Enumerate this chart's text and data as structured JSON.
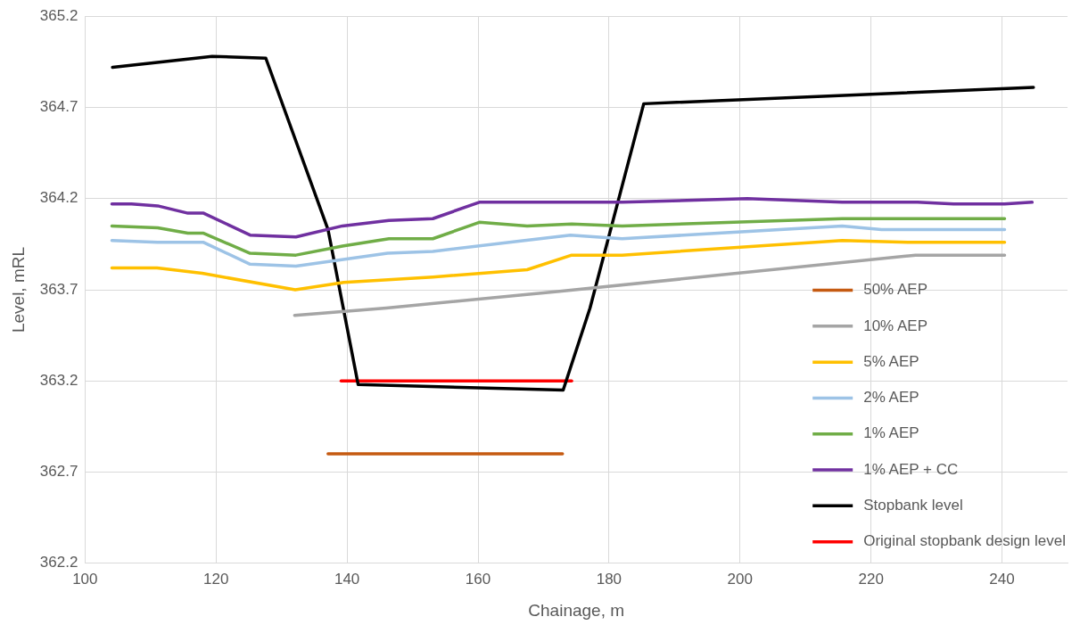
{
  "chart_data": {
    "type": "line",
    "xlabel": "Chainage, m",
    "ylabel": "Level, mRL",
    "xlim": [
      100,
      250
    ],
    "xticks": [
      100,
      120,
      140,
      160,
      180,
      200,
      220,
      240
    ],
    "ylim": [
      362.2,
      365.2
    ],
    "yticks": [
      362.2,
      362.7,
      363.2,
      363.7,
      364.2,
      364.7,
      365.2
    ],
    "grid": true,
    "legend": "bottom right",
    "marker": "none",
    "line_style": "solid",
    "series": [
      {
        "name": "50% AEP",
        "color": "#c55a11",
        "x": [
          137.1,
          172.9
        ],
        "values": [
          362.8,
          362.8
        ]
      },
      {
        "name": "10% AEP",
        "color": "#a5a5a5",
        "x": [
          132,
          146,
          172.1,
          226.8,
          240.4
        ],
        "values": [
          363.56,
          363.6,
          363.69,
          363.89,
          363.89
        ]
      },
      {
        "name": "5% AEP",
        "color": "#ffc000",
        "x": [
          104.1,
          111,
          117.9,
          132.1,
          139.5,
          153.1,
          167.5,
          174.3,
          182,
          215.6,
          225.9,
          240.4
        ],
        "values": [
          363.82,
          363.82,
          363.79,
          363.7,
          363.74,
          363.77,
          363.81,
          363.89,
          363.89,
          363.97,
          363.96,
          363.96
        ]
      },
      {
        "name": "2% AEP",
        "color": "#9dc3e6",
        "x": [
          104.1,
          111.1,
          115.5,
          118.1,
          125.2,
          132.2,
          146.2,
          153.1,
          167.1,
          174.1,
          182,
          215.6,
          221.6,
          240.4
        ],
        "values": [
          363.97,
          363.96,
          363.96,
          363.96,
          363.84,
          363.83,
          363.9,
          363.91,
          363.97,
          364.0,
          363.98,
          364.05,
          364.03,
          364.03
        ]
      },
      {
        "name": "1% AEP",
        "color": "#70ad47",
        "x": [
          104.1,
          111.1,
          115.7,
          118.1,
          125.2,
          132.2,
          139.3,
          146.4,
          153.1,
          160.2,
          167.5,
          174.3,
          182,
          215.6,
          240.4
        ],
        "values": [
          364.05,
          364.04,
          364.01,
          364.01,
          363.9,
          363.89,
          363.94,
          363.98,
          363.98,
          364.07,
          364.05,
          364.06,
          364.05,
          364.09,
          364.09
        ]
      },
      {
        "name": "1% AEP + CC",
        "color": "#7030a0",
        "x": [
          104.1,
          107.1,
          111.1,
          115.7,
          118.1,
          125.2,
          132.2,
          139.3,
          146.4,
          153.1,
          160.2,
          182,
          201.1,
          215.6,
          227.1,
          232.6,
          240.4,
          244.6
        ],
        "values": [
          364.17,
          364.17,
          364.16,
          364.12,
          364.12,
          364.0,
          363.99,
          364.05,
          364.08,
          364.09,
          364.18,
          364.18,
          364.2,
          364.18,
          364.18,
          364.17,
          364.17,
          364.18
        ]
      },
      {
        "name": "Stopbank level",
        "color": "#000000",
        "x": [
          104.2,
          119.4,
          127.6,
          137.1,
          141.7,
          173.0,
          177.1,
          185.3,
          244.8
        ],
        "values": [
          364.92,
          364.98,
          364.97,
          364.03,
          363.18,
          363.15,
          363.6,
          364.72,
          364.81
        ]
      },
      {
        "name": "Original stopbank design level",
        "color": "#ff0000",
        "x": [
          139.1,
          174.3
        ],
        "values": [
          363.2,
          363.2
        ]
      }
    ]
  }
}
